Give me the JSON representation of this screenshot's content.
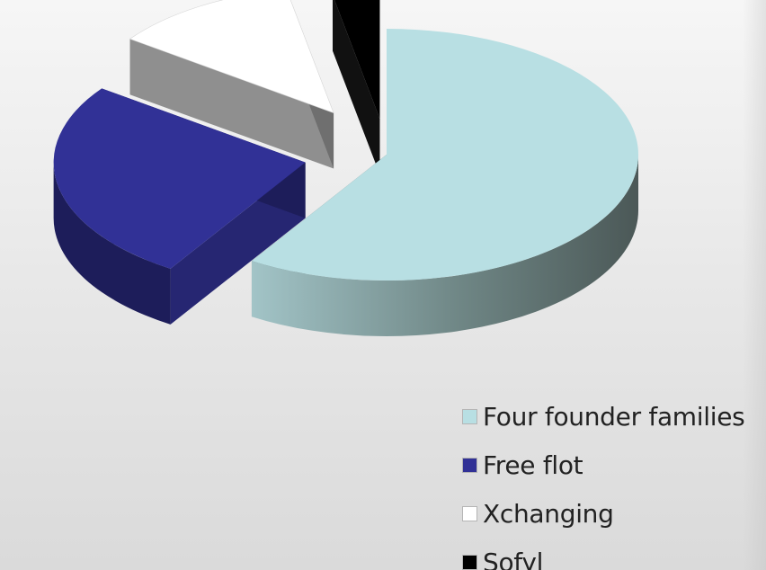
{
  "chart_data": {
    "type": "pie",
    "style": "3d-exploded",
    "title": "",
    "slices": [
      {
        "label": "Four founder families",
        "value": 59,
        "color": "#b8dfe3",
        "side_color_light": "#8aa9ab",
        "side_color_dark": "#4f5e5d"
      },
      {
        "label": "Free flot",
        "value": 26,
        "color": "#313196",
        "side_color_light": "#262672",
        "side_color_dark": "#1d1d5a"
      },
      {
        "label": "Xchanging",
        "value": 12,
        "color": "#ffffff",
        "side_color_light": "#8f8f8f",
        "side_color_dark": "#6f6f6f"
      },
      {
        "label": "Sofyl",
        "value": 3,
        "color": "#000000",
        "side_color_light": "#111111",
        "side_color_dark": "#000000"
      }
    ],
    "legend": {
      "position": "bottom-right",
      "entries": [
        "Four founder families",
        "Free flot",
        "Xchanging",
        "Sofyl"
      ]
    }
  }
}
